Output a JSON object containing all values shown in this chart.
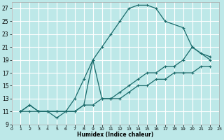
{
  "xlabel": "Humidex (Indice chaleur)",
  "bg_color": "#bde8e8",
  "grid_color": "#ffffff",
  "line_color": "#1a6b6b",
  "xlim": [
    0,
    23
  ],
  "ylim": [
    9,
    28
  ],
  "xticks": [
    0,
    1,
    2,
    3,
    4,
    5,
    6,
    7,
    8,
    9,
    10,
    11,
    12,
    13,
    14,
    15,
    16,
    17,
    18,
    19,
    20,
    21,
    22,
    23
  ],
  "yticks": [
    9,
    11,
    13,
    15,
    17,
    19,
    21,
    23,
    25,
    27
  ],
  "line1_x": [
    1,
    2,
    3,
    4,
    5,
    6,
    7,
    8,
    9,
    10,
    11,
    12,
    13,
    14,
    15,
    16,
    17,
    19,
    20,
    22
  ],
  "line1_y": [
    11,
    12,
    11,
    11,
    10,
    11,
    13,
    16,
    19,
    21,
    23,
    25,
    27,
    27.5,
    27.5,
    27,
    25,
    24,
    21,
    19
  ],
  "line2_x": [
    1,
    2,
    3,
    4,
    5,
    6,
    7,
    8,
    9,
    10,
    11,
    12,
    13,
    14,
    15,
    16,
    17,
    18,
    19,
    20,
    21,
    22
  ],
  "line2_y": [
    11,
    12,
    11,
    11,
    11,
    11,
    11,
    12,
    19,
    13,
    13,
    14,
    15,
    16,
    17,
    17,
    18,
    18,
    19,
    21,
    20,
    19.5
  ],
  "line3_x": [
    1,
    2,
    3,
    4,
    5,
    6,
    7,
    8,
    9,
    10,
    11,
    12,
    13,
    14,
    15,
    16,
    17,
    18,
    19,
    20,
    21,
    22
  ],
  "line3_y": [
    11,
    11,
    11,
    11,
    11,
    11,
    11,
    12,
    12,
    13,
    13,
    13,
    14,
    15,
    15,
    16,
    16,
    17,
    17,
    17,
    18,
    18
  ]
}
